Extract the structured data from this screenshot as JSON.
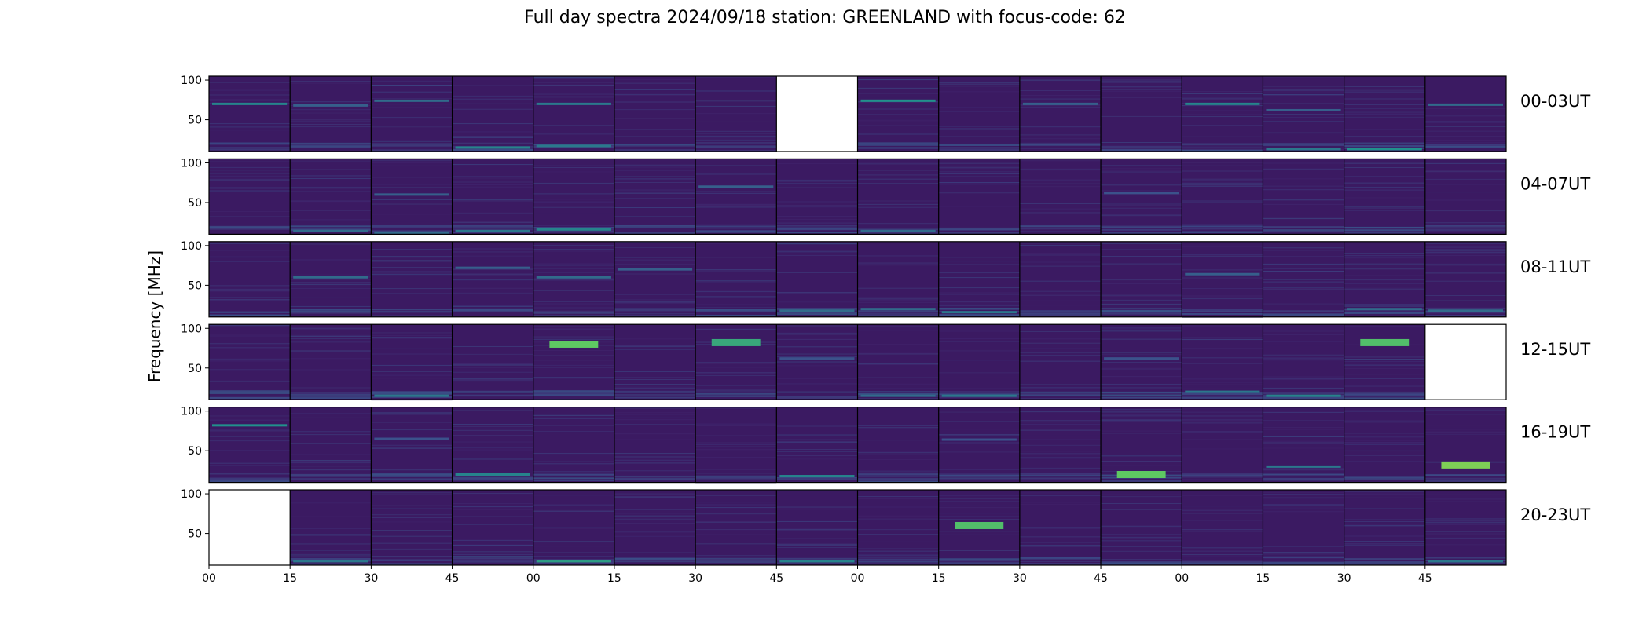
{
  "figure": {
    "title": "Full day spectra 2024/09/18 station: GREENLAND with focus-code: 62",
    "ylabel": "Frequency [MHz]"
  },
  "chart_data": {
    "type": "heatmap",
    "title": "Full day spectra 2024/09/18 station: GREENLAND with focus-code: 62",
    "ylabel": "Frequency [MHz]",
    "xlabel": "",
    "colormap": "viridis",
    "background_color": "#3b1a62",
    "ylim": [
      10,
      105
    ],
    "yticks": [
      50,
      100
    ],
    "xticks": [
      "00",
      "15",
      "30",
      "45",
      "00",
      "15",
      "30",
      "45",
      "00",
      "15",
      "30",
      "45",
      "00",
      "15",
      "30",
      "45"
    ],
    "grid": false,
    "panels_per_row": 16,
    "minutes_per_panel": 15,
    "rows": [
      {
        "label": "00-03UT",
        "missing_panels": [
          7
        ],
        "bands": [
          {
            "panel": 0,
            "freq": 70,
            "intensity": 0.45
          },
          {
            "panel": 1,
            "freq": 68,
            "intensity": 0.3
          },
          {
            "panel": 2,
            "freq": 74,
            "intensity": 0.35
          },
          {
            "panel": 4,
            "freq": 70,
            "intensity": 0.4
          },
          {
            "panel": 8,
            "freq": 74,
            "intensity": 0.5
          },
          {
            "panel": 10,
            "freq": 70,
            "intensity": 0.3
          },
          {
            "panel": 12,
            "freq": 70,
            "intensity": 0.45
          },
          {
            "panel": 13,
            "freq": 62,
            "intensity": 0.3
          },
          {
            "panel": 15,
            "freq": 69,
            "intensity": 0.35
          },
          {
            "panel": 3,
            "freq": 15,
            "intensity": 0.45
          },
          {
            "panel": 4,
            "freq": 17,
            "intensity": 0.4
          },
          {
            "panel": 13,
            "freq": 13,
            "intensity": 0.4
          },
          {
            "panel": 14,
            "freq": 13,
            "intensity": 0.5
          }
        ]
      },
      {
        "label": "04-07UT",
        "missing_panels": [],
        "bands": [
          {
            "panel": 2,
            "freq": 60,
            "intensity": 0.3
          },
          {
            "panel": 6,
            "freq": 70,
            "intensity": 0.3
          },
          {
            "panel": 11,
            "freq": 62,
            "intensity": 0.25
          },
          {
            "panel": 1,
            "freq": 14,
            "intensity": 0.35
          },
          {
            "panel": 2,
            "freq": 12,
            "intensity": 0.35
          },
          {
            "panel": 3,
            "freq": 14,
            "intensity": 0.4
          },
          {
            "panel": 4,
            "freq": 16,
            "intensity": 0.45
          },
          {
            "panel": 8,
            "freq": 14,
            "intensity": 0.35
          }
        ]
      },
      {
        "label": "08-11UT",
        "missing_panels": [],
        "bands": [
          {
            "panel": 1,
            "freq": 60,
            "intensity": 0.35
          },
          {
            "panel": 3,
            "freq": 72,
            "intensity": 0.3
          },
          {
            "panel": 4,
            "freq": 60,
            "intensity": 0.35
          },
          {
            "panel": 5,
            "freq": 70,
            "intensity": 0.3
          },
          {
            "panel": 12,
            "freq": 64,
            "intensity": 0.3
          },
          {
            "panel": 7,
            "freq": 18,
            "intensity": 0.35
          },
          {
            "panel": 8,
            "freq": 20,
            "intensity": 0.35
          },
          {
            "panel": 9,
            "freq": 16,
            "intensity": 0.4
          },
          {
            "panel": 14,
            "freq": 20,
            "intensity": 0.35
          },
          {
            "panel": 15,
            "freq": 18,
            "intensity": 0.35
          }
        ]
      },
      {
        "label": "12-15UT",
        "missing_panels": [
          15
        ],
        "bands": [
          {
            "panel": 4,
            "freq": 80,
            "intensity": 0.75
          },
          {
            "panel": 6,
            "freq": 82,
            "intensity": 0.6
          },
          {
            "panel": 14,
            "freq": 82,
            "intensity": 0.7
          },
          {
            "panel": 7,
            "freq": 62,
            "intensity": 0.25
          },
          {
            "panel": 11,
            "freq": 62,
            "intensity": 0.25
          },
          {
            "panel": 2,
            "freq": 15,
            "intensity": 0.4
          },
          {
            "panel": 8,
            "freq": 15,
            "intensity": 0.35
          },
          {
            "panel": 9,
            "freq": 15,
            "intensity": 0.4
          },
          {
            "panel": 12,
            "freq": 20,
            "intensity": 0.4
          },
          {
            "panel": 13,
            "freq": 15,
            "intensity": 0.45
          }
        ]
      },
      {
        "label": "16-19UT",
        "missing_panels": [],
        "bands": [
          {
            "panel": 0,
            "freq": 82,
            "intensity": 0.5
          },
          {
            "panel": 2,
            "freq": 65,
            "intensity": 0.25
          },
          {
            "panel": 9,
            "freq": 64,
            "intensity": 0.25
          },
          {
            "panel": 3,
            "freq": 20,
            "intensity": 0.45
          },
          {
            "panel": 7,
            "freq": 18,
            "intensity": 0.45
          },
          {
            "panel": 11,
            "freq": 20,
            "intensity": 0.75
          },
          {
            "panel": 13,
            "freq": 30,
            "intensity": 0.4
          },
          {
            "panel": 15,
            "freq": 32,
            "intensity": 0.8
          }
        ]
      },
      {
        "label": "20-23UT",
        "missing_panels": [
          0
        ],
        "bands": [
          {
            "panel": 9,
            "freq": 60,
            "intensity": 0.7
          },
          {
            "panel": 1,
            "freq": 15,
            "intensity": 0.4
          },
          {
            "panel": 4,
            "freq": 15,
            "intensity": 0.55
          },
          {
            "panel": 7,
            "freq": 15,
            "intensity": 0.45
          },
          {
            "panel": 15,
            "freq": 15,
            "intensity": 0.4
          }
        ]
      }
    ]
  }
}
